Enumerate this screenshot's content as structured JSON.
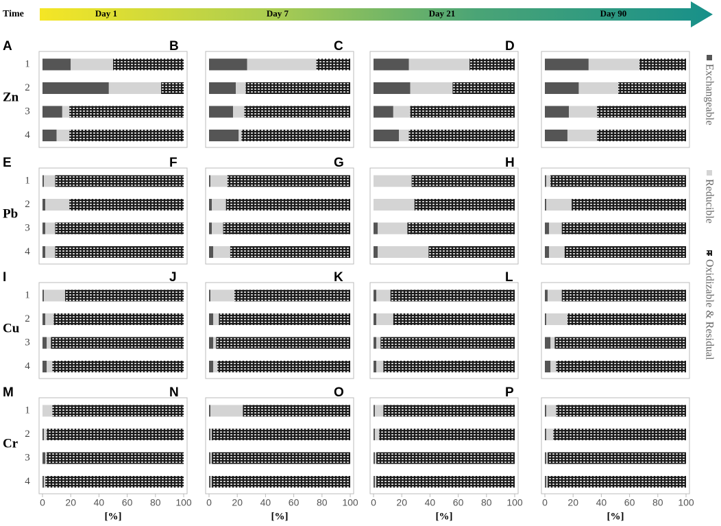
{
  "timeline": {
    "label": "Time",
    "stages": [
      "Day 1",
      "Day 7",
      "Day 21",
      "Day 90"
    ]
  },
  "metals": [
    "Zn",
    "Pb",
    "Cu",
    "Cr"
  ],
  "chart_data": [
    {
      "type": "bar",
      "panel": "A",
      "categories": [
        "1",
        "2",
        "3",
        "4"
      ],
      "xlim": [
        0,
        100
      ],
      "series": [
        {
          "name": "Exchangeable",
          "color": "#555555",
          "values": [
            20,
            47,
            14,
            10
          ]
        },
        {
          "name": "Reducible",
          "color": "#d4d4d4",
          "values": [
            30,
            37,
            5,
            9
          ]
        },
        {
          "name": "Oxidizable & Residual",
          "color": "#1a1a1a",
          "values": [
            50,
            16,
            81,
            81
          ]
        }
      ]
    },
    {
      "type": "bar",
      "panel": "B",
      "categories": [
        null,
        null,
        null,
        null
      ],
      "xlim": [
        0,
        100
      ],
      "series": [
        {
          "name": "Exchangeable",
          "color": "#555555",
          "values": [
            27,
            19,
            17,
            21
          ]
        },
        {
          "name": "Reducible",
          "color": "#d4d4d4",
          "values": [
            49,
            7,
            8,
            2
          ]
        },
        {
          "name": "Oxidizable & Residual",
          "color": "#1a1a1a",
          "values": [
            24,
            74,
            75,
            77
          ]
        }
      ]
    },
    {
      "type": "bar",
      "panel": "C",
      "categories": [
        null,
        null,
        null,
        null
      ],
      "xlim": [
        0,
        100
      ],
      "series": [
        {
          "name": "Exchangeable",
          "color": "#555555",
          "values": [
            25,
            26,
            14,
            18
          ]
        },
        {
          "name": "Reducible",
          "color": "#d4d4d4",
          "values": [
            43,
            30,
            12,
            7
          ]
        },
        {
          "name": "Oxidizable & Residual",
          "color": "#1a1a1a",
          "values": [
            32,
            44,
            74,
            75
          ]
        }
      ]
    },
    {
      "type": "bar",
      "panel": "D",
      "categories": [
        null,
        null,
        null,
        null
      ],
      "xlim": [
        0,
        100
      ],
      "series": [
        {
          "name": "Exchangeable",
          "color": "#555555",
          "values": [
            31,
            24,
            17,
            16
          ]
        },
        {
          "name": "Reducible",
          "color": "#d4d4d4",
          "values": [
            36,
            28,
            20,
            21
          ]
        },
        {
          "name": "Oxidizable & Residual",
          "color": "#1a1a1a",
          "values": [
            33,
            48,
            63,
            63
          ]
        }
      ]
    },
    {
      "type": "bar",
      "panel": "E",
      "categories": [
        "1",
        "2",
        "3",
        "4"
      ],
      "xlim": [
        0,
        100
      ],
      "series": [
        {
          "name": "Exchangeable",
          "color": "#555555",
          "values": [
            1,
            2,
            2,
            2
          ]
        },
        {
          "name": "Reducible",
          "color": "#d4d4d4",
          "values": [
            8,
            17,
            7,
            7
          ]
        },
        {
          "name": "Oxidizable & Residual",
          "color": "#1a1a1a",
          "values": [
            91,
            81,
            91,
            91
          ]
        }
      ]
    },
    {
      "type": "bar",
      "panel": "F",
      "categories": [
        null,
        null,
        null,
        null
      ],
      "xlim": [
        0,
        100
      ],
      "series": [
        {
          "name": "Exchangeable",
          "color": "#555555",
          "values": [
            1,
            2,
            2,
            3
          ]
        },
        {
          "name": "Reducible",
          "color": "#d4d4d4",
          "values": [
            12,
            10,
            8,
            12
          ]
        },
        {
          "name": "Oxidizable & Residual",
          "color": "#1a1a1a",
          "values": [
            87,
            88,
            90,
            85
          ]
        }
      ]
    },
    {
      "type": "bar",
      "panel": "G",
      "categories": [
        null,
        null,
        null,
        null
      ],
      "xlim": [
        0,
        100
      ],
      "series": [
        {
          "name": "Exchangeable",
          "color": "#555555",
          "values": [
            0,
            0,
            3,
            3
          ]
        },
        {
          "name": "Reducible",
          "color": "#d4d4d4",
          "values": [
            27,
            29,
            21,
            36
          ]
        },
        {
          "name": "Oxidizable & Residual",
          "color": "#1a1a1a",
          "values": [
            73,
            71,
            76,
            61
          ]
        }
      ]
    },
    {
      "type": "bar",
      "panel": "H",
      "categories": [
        null,
        null,
        null,
        null
      ],
      "xlim": [
        0,
        100
      ],
      "series": [
        {
          "name": "Exchangeable",
          "color": "#555555",
          "values": [
            1,
            1,
            3,
            3
          ]
        },
        {
          "name": "Reducible",
          "color": "#d4d4d4",
          "values": [
            3,
            18,
            9,
            11
          ]
        },
        {
          "name": "Oxidizable & Residual",
          "color": "#1a1a1a",
          "values": [
            96,
            81,
            88,
            86
          ]
        }
      ]
    },
    {
      "type": "bar",
      "panel": "I",
      "categories": [
        "1",
        "2",
        "3",
        "4"
      ],
      "xlim": [
        0,
        100
      ],
      "series": [
        {
          "name": "Exchangeable",
          "color": "#555555",
          "values": [
            1,
            2,
            3,
            3
          ]
        },
        {
          "name": "Reducible",
          "color": "#d4d4d4",
          "values": [
            15,
            6,
            3,
            4
          ]
        },
        {
          "name": "Oxidizable & Residual",
          "color": "#1a1a1a",
          "values": [
            84,
            92,
            94,
            93
          ]
        }
      ]
    },
    {
      "type": "bar",
      "panel": "J",
      "categories": [
        null,
        null,
        null,
        null
      ],
      "xlim": [
        0,
        100
      ],
      "series": [
        {
          "name": "Exchangeable",
          "color": "#555555",
          "values": [
            1,
            3,
            3,
            3
          ]
        },
        {
          "name": "Reducible",
          "color": "#d4d4d4",
          "values": [
            17,
            4,
            2,
            3
          ]
        },
        {
          "name": "Oxidizable & Residual",
          "color": "#1a1a1a",
          "values": [
            82,
            93,
            95,
            94
          ]
        }
      ]
    },
    {
      "type": "bar",
      "panel": "K",
      "categories": [
        null,
        null,
        null,
        null
      ],
      "xlim": [
        0,
        100
      ],
      "series": [
        {
          "name": "Exchangeable",
          "color": "#555555",
          "values": [
            2,
            2,
            2,
            2
          ]
        },
        {
          "name": "Reducible",
          "color": "#d4d4d4",
          "values": [
            10,
            12,
            3,
            5
          ]
        },
        {
          "name": "Oxidizable & Residual",
          "color": "#1a1a1a",
          "values": [
            88,
            86,
            95,
            93
          ]
        }
      ]
    },
    {
      "type": "bar",
      "panel": "L",
      "categories": [
        null,
        null,
        null,
        null
      ],
      "xlim": [
        0,
        100
      ],
      "series": [
        {
          "name": "Exchangeable",
          "color": "#555555",
          "values": [
            2,
            1,
            4,
            4
          ]
        },
        {
          "name": "Reducible",
          "color": "#d4d4d4",
          "values": [
            10,
            15,
            3,
            4
          ]
        },
        {
          "name": "Oxidizable & Residual",
          "color": "#1a1a1a",
          "values": [
            88,
            84,
            93,
            92
          ]
        }
      ]
    },
    {
      "type": "bar",
      "panel": "M",
      "categories": [
        "1",
        "2",
        "3",
        "4"
      ],
      "xlim": [
        0,
        100
      ],
      "xticks": [
        0,
        20,
        40,
        60,
        80,
        100
      ],
      "xlabel": "[%]",
      "series": [
        {
          "name": "Exchangeable",
          "color": "#555555",
          "values": [
            0,
            1,
            2,
            1
          ]
        },
        {
          "name": "Reducible",
          "color": "#d4d4d4",
          "values": [
            7,
            2,
            1,
            1
          ]
        },
        {
          "name": "Oxidizable & Residual",
          "color": "#1a1a1a",
          "values": [
            93,
            97,
            97,
            98
          ]
        }
      ]
    },
    {
      "type": "bar",
      "panel": "N",
      "categories": [
        null,
        null,
        null,
        null
      ],
      "xlim": [
        0,
        100
      ],
      "xticks": [
        0,
        20,
        40,
        60,
        80,
        100
      ],
      "xlabel": "[%]",
      "series": [
        {
          "name": "Exchangeable",
          "color": "#555555",
          "values": [
            1,
            1,
            1,
            1
          ]
        },
        {
          "name": "Reducible",
          "color": "#d4d4d4",
          "values": [
            23,
            1,
            1,
            1
          ]
        },
        {
          "name": "Oxidizable & Residual",
          "color": "#1a1a1a",
          "values": [
            76,
            98,
            98,
            98
          ]
        }
      ]
    },
    {
      "type": "bar",
      "panel": "O",
      "categories": [
        null,
        null,
        null,
        null
      ],
      "xlim": [
        0,
        100
      ],
      "xticks": [
        0,
        20,
        40,
        60,
        80,
        100
      ],
      "xlabel": "[%]",
      "series": [
        {
          "name": "Exchangeable",
          "color": "#555555",
          "values": [
            1,
            1,
            1,
            1
          ]
        },
        {
          "name": "Reducible",
          "color": "#d4d4d4",
          "values": [
            6,
            3,
            1,
            1
          ]
        },
        {
          "name": "Oxidizable & Residual",
          "color": "#1a1a1a",
          "values": [
            93,
            96,
            98,
            98
          ]
        }
      ]
    },
    {
      "type": "bar",
      "panel": "P",
      "categories": [
        null,
        null,
        null,
        null
      ],
      "xlim": [
        0,
        100
      ],
      "xticks": [
        0,
        20,
        40,
        60,
        80,
        100
      ],
      "xlabel": "[%]",
      "series": [
        {
          "name": "Exchangeable",
          "color": "#555555",
          "values": [
            1,
            1,
            1,
            1
          ]
        },
        {
          "name": "Reducible",
          "color": "#d4d4d4",
          "values": [
            7,
            5,
            1,
            1
          ]
        },
        {
          "name": "Oxidizable & Residual",
          "color": "#1a1a1a",
          "values": [
            92,
            94,
            98,
            98
          ]
        }
      ]
    }
  ]
}
